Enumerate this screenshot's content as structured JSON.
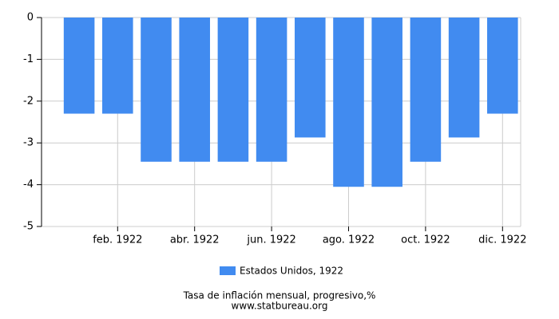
{
  "chart_data": {
    "type": "bar",
    "categories": [
      null,
      "feb. 1922",
      null,
      "abr. 1922",
      null,
      "jun. 1922",
      null,
      "ago. 1922",
      null,
      "oct. 1922",
      null,
      "dic. 1922"
    ],
    "series": [
      {
        "name": "Estados Unidos, 1922",
        "color": "#418bf0",
        "values": [
          -2.3,
          -2.3,
          -3.45,
          -3.45,
          -3.45,
          -3.45,
          -2.87,
          -4.05,
          -4.05,
          -3.45,
          -2.87,
          -2.3
        ]
      }
    ],
    "ylim": [
      -5,
      0
    ],
    "yticks": [
      0,
      -1,
      -2,
      -3,
      -4,
      -5
    ],
    "grid": true,
    "subtitle": "Tasa de inflación mensual, progresivo,%",
    "source": "www.statbureau.org"
  }
}
